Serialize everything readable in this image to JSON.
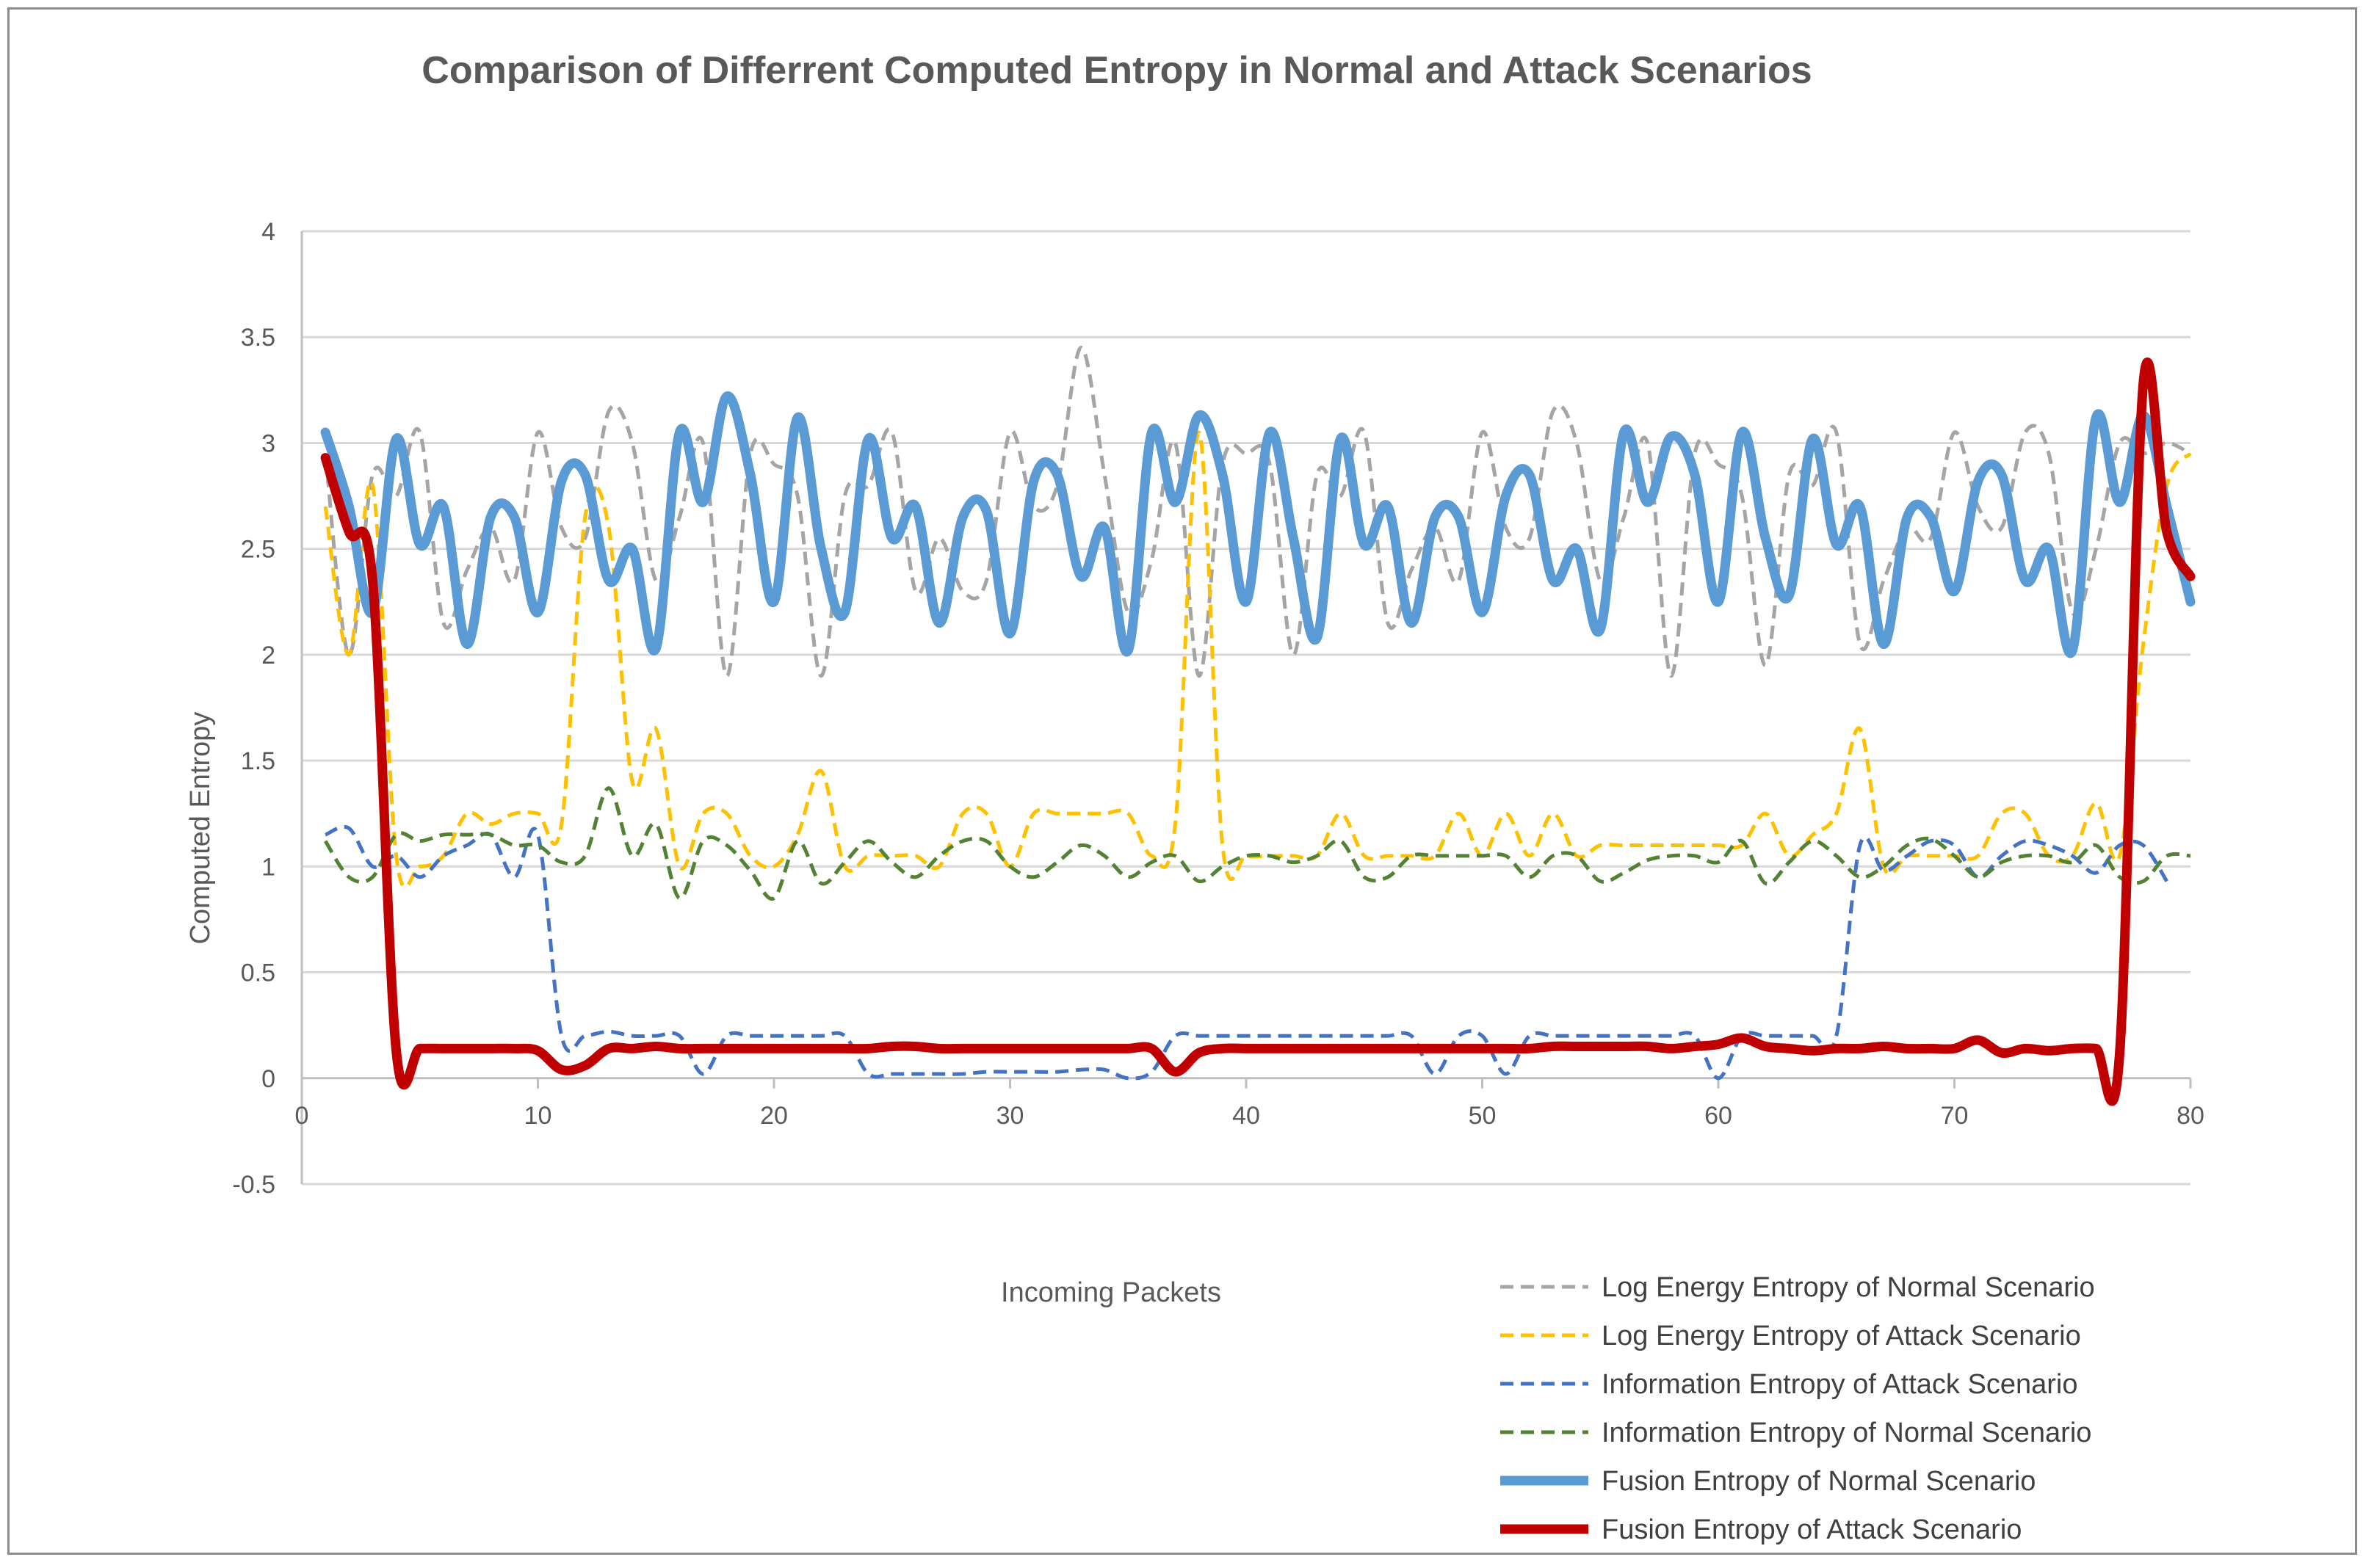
{
  "chart_data": {
    "type": "line",
    "title": "Comparison of Differrent Computed Entropy in Normal and Attack Scenarios",
    "xlabel": "Incoming Packets",
    "ylabel": "Computed Entropy",
    "xlim": [
      0,
      80
    ],
    "ylim": [
      -0.5,
      4
    ],
    "x_ticks": [
      0,
      10,
      20,
      30,
      40,
      50,
      60,
      70,
      80
    ],
    "y_ticks": [
      -0.5,
      0,
      0.5,
      1,
      1.5,
      2,
      2.5,
      3,
      3.5,
      4
    ],
    "y_tick_labels": [
      "-0.5",
      "0",
      "0.5",
      "1",
      "1.5",
      "2",
      "2.5",
      "3",
      "3.5",
      "4"
    ],
    "grid": "horizontal",
    "legend_position": "bottom-right",
    "x": [
      1,
      2,
      3,
      4,
      5,
      6,
      7,
      8,
      9,
      10,
      11,
      12,
      13,
      14,
      15,
      16,
      17,
      18,
      19,
      20,
      21,
      22,
      23,
      24,
      25,
      26,
      27,
      28,
      29,
      30,
      31,
      32,
      33,
      34,
      35,
      36,
      37,
      38,
      39,
      40,
      41,
      42,
      43,
      44,
      45,
      46,
      47,
      48,
      49,
      50,
      51,
      52,
      53,
      54,
      55,
      56,
      57,
      58,
      59,
      60,
      61,
      62,
      63,
      64,
      65,
      66,
      67,
      68,
      69,
      70,
      71,
      72,
      73,
      74,
      75,
      76,
      77,
      78,
      79,
      80
    ],
    "series": [
      {
        "name": "Log Energy Entropy of Normal Scenario",
        "color": "#a5a5a5",
        "style": "dashed",
        "width": 5,
        "values": [
          2.95,
          2.0,
          2.85,
          2.75,
          3.05,
          2.15,
          2.4,
          2.6,
          2.35,
          3.05,
          2.6,
          2.55,
          3.15,
          3.0,
          2.35,
          2.65,
          3.0,
          1.9,
          2.95,
          2.9,
          2.75,
          1.9,
          2.75,
          2.8,
          3.05,
          2.3,
          2.55,
          2.3,
          2.35,
          3.05,
          2.7,
          2.8,
          3.45,
          2.85,
          2.2,
          2.45,
          3.0,
          1.9,
          2.9,
          2.95,
          2.9,
          2.0,
          2.85,
          2.75,
          3.05,
          2.15,
          2.4,
          2.6,
          2.35,
          3.05,
          2.6,
          2.55,
          3.15,
          3.0,
          2.35,
          2.65,
          3.0,
          1.9,
          2.95,
          2.9,
          2.75,
          1.95,
          2.85,
          2.8,
          3.05,
          2.05,
          2.35,
          2.6,
          2.55,
          3.05,
          2.7,
          2.6,
          3.05,
          2.95,
          2.2,
          2.5,
          3.0,
          2.95,
          3.0,
          2.95
        ]
      },
      {
        "name": "Log Energy Entropy of Attack Scenario",
        "color": "#ffc000",
        "style": "dashed",
        "width": 5,
        "values": [
          2.7,
          2.0,
          2.8,
          1.05,
          1.0,
          1.05,
          1.25,
          1.2,
          1.25,
          1.25,
          1.2,
          2.65,
          2.6,
          1.4,
          1.65,
          1.0,
          1.25,
          1.25,
          1.05,
          1.0,
          1.15,
          1.45,
          1.0,
          1.05,
          1.05,
          1.05,
          1.0,
          1.25,
          1.25,
          1.0,
          1.25,
          1.25,
          1.25,
          1.25,
          1.25,
          1.05,
          1.2,
          3.05,
          1.1,
          1.05,
          1.05,
          1.05,
          1.05,
          1.25,
          1.05,
          1.05,
          1.05,
          1.05,
          1.25,
          1.05,
          1.25,
          1.05,
          1.25,
          1.05,
          1.1,
          1.1,
          1.1,
          1.1,
          1.1,
          1.1,
          1.1,
          1.25,
          1.05,
          1.15,
          1.25,
          1.65,
          1.0,
          1.05,
          1.05,
          1.05,
          1.05,
          1.25,
          1.25,
          1.05,
          1.05,
          1.3,
          1.05,
          2.05,
          2.8,
          2.95
        ]
      },
      {
        "name": "Information Entropy of Attack Scenario",
        "color": "#4472c4",
        "style": "dashed",
        "width": 5,
        "values": [
          1.15,
          1.18,
          1.0,
          1.05,
          0.95,
          1.05,
          1.1,
          1.15,
          0.95,
          1.15,
          0.2,
          0.2,
          0.22,
          0.2,
          0.2,
          0.2,
          0.02,
          0.2,
          0.2,
          0.2,
          0.2,
          0.2,
          0.2,
          0.02,
          0.02,
          0.02,
          0.02,
          0.02,
          0.03,
          0.03,
          0.03,
          0.03,
          0.04,
          0.04,
          0.0,
          0.03,
          0.2,
          0.2,
          0.2,
          0.2,
          0.2,
          0.2,
          0.2,
          0.2,
          0.2,
          0.2,
          0.2,
          0.02,
          0.2,
          0.2,
          0.02,
          0.2,
          0.2,
          0.2,
          0.2,
          0.2,
          0.2,
          0.2,
          0.2,
          0.0,
          0.2,
          0.2,
          0.2,
          0.2,
          0.2,
          1.1,
          0.98,
          1.05,
          1.12,
          1.1,
          0.95,
          1.05,
          1.12,
          1.1,
          1.05,
          0.97,
          1.1,
          1.1,
          0.93,
          null
        ]
      },
      {
        "name": "Information Entropy of Normal Scenario",
        "color": "#548235",
        "style": "dashed",
        "width": 5,
        "values": [
          1.12,
          0.95,
          0.95,
          1.15,
          1.12,
          1.15,
          1.15,
          1.15,
          1.1,
          1.1,
          1.02,
          1.05,
          1.37,
          1.05,
          1.2,
          0.85,
          1.12,
          1.1,
          0.98,
          0.85,
          1.12,
          0.92,
          1.02,
          1.12,
          1.02,
          0.95,
          1.05,
          1.12,
          1.12,
          1.0,
          0.95,
          1.02,
          1.1,
          1.05,
          0.95,
          1.02,
          1.05,
          0.93,
          1.0,
          1.05,
          1.05,
          1.02,
          1.05,
          1.12,
          0.95,
          0.95,
          1.05,
          1.05,
          1.05,
          1.05,
          1.05,
          0.95,
          1.05,
          1.05,
          0.93,
          0.97,
          1.03,
          1.05,
          1.05,
          1.02,
          1.12,
          0.92,
          1.02,
          1.12,
          1.05,
          0.95,
          1.0,
          1.1,
          1.13,
          1.05,
          0.95,
          1.02,
          1.05,
          1.05,
          1.02,
          1.1,
          0.95,
          0.93,
          1.05,
          1.05
        ]
      },
      {
        "name": "Fusion Entropy of Normal Scenario",
        "color": "#5b9bd5",
        "style": "solid",
        "width": 13,
        "values": [
          3.05,
          2.7,
          2.2,
          3.02,
          2.52,
          2.7,
          2.05,
          2.65,
          2.65,
          2.2,
          2.82,
          2.85,
          2.35,
          2.5,
          2.03,
          3.05,
          2.72,
          3.22,
          2.85,
          2.25,
          3.12,
          2.5,
          2.2,
          3.02,
          2.55,
          2.7,
          2.15,
          2.65,
          2.68,
          2.1,
          2.82,
          2.85,
          2.37,
          2.6,
          2.02,
          3.05,
          2.72,
          3.13,
          2.85,
          2.25,
          3.05,
          2.55,
          2.08,
          3.02,
          2.52,
          2.7,
          2.15,
          2.65,
          2.65,
          2.2,
          2.75,
          2.85,
          2.35,
          2.5,
          2.12,
          3.05,
          2.72,
          3.03,
          2.85,
          2.25,
          3.05,
          2.55,
          2.28,
          3.02,
          2.52,
          2.7,
          2.05,
          2.65,
          2.65,
          2.3,
          2.82,
          2.85,
          2.35,
          2.5,
          2.02,
          3.12,
          2.72,
          3.13,
          2.7,
          2.25
        ]
      },
      {
        "name": "Fusion Entropy of Attack Scenario",
        "color": "#c00000",
        "style": "solid",
        "width": 13,
        "values": [
          2.93,
          2.58,
          2.35,
          0.13,
          0.14,
          0.14,
          0.14,
          0.14,
          0.14,
          0.13,
          0.04,
          0.06,
          0.14,
          0.14,
          0.15,
          0.14,
          0.14,
          0.14,
          0.14,
          0.14,
          0.14,
          0.14,
          0.14,
          0.14,
          0.15,
          0.15,
          0.14,
          0.14,
          0.14,
          0.14,
          0.14,
          0.14,
          0.14,
          0.14,
          0.14,
          0.14,
          0.03,
          0.12,
          0.14,
          0.14,
          0.14,
          0.14,
          0.14,
          0.14,
          0.14,
          0.14,
          0.14,
          0.14,
          0.14,
          0.14,
          0.14,
          0.14,
          0.15,
          0.15,
          0.15,
          0.15,
          0.15,
          0.14,
          0.15,
          0.16,
          0.19,
          0.15,
          0.14,
          0.13,
          0.14,
          0.14,
          0.15,
          0.14,
          0.14,
          0.14,
          0.18,
          0.12,
          0.14,
          0.13,
          0.14,
          0.14,
          0.12,
          3.28,
          2.58,
          2.37
        ]
      }
    ]
  }
}
